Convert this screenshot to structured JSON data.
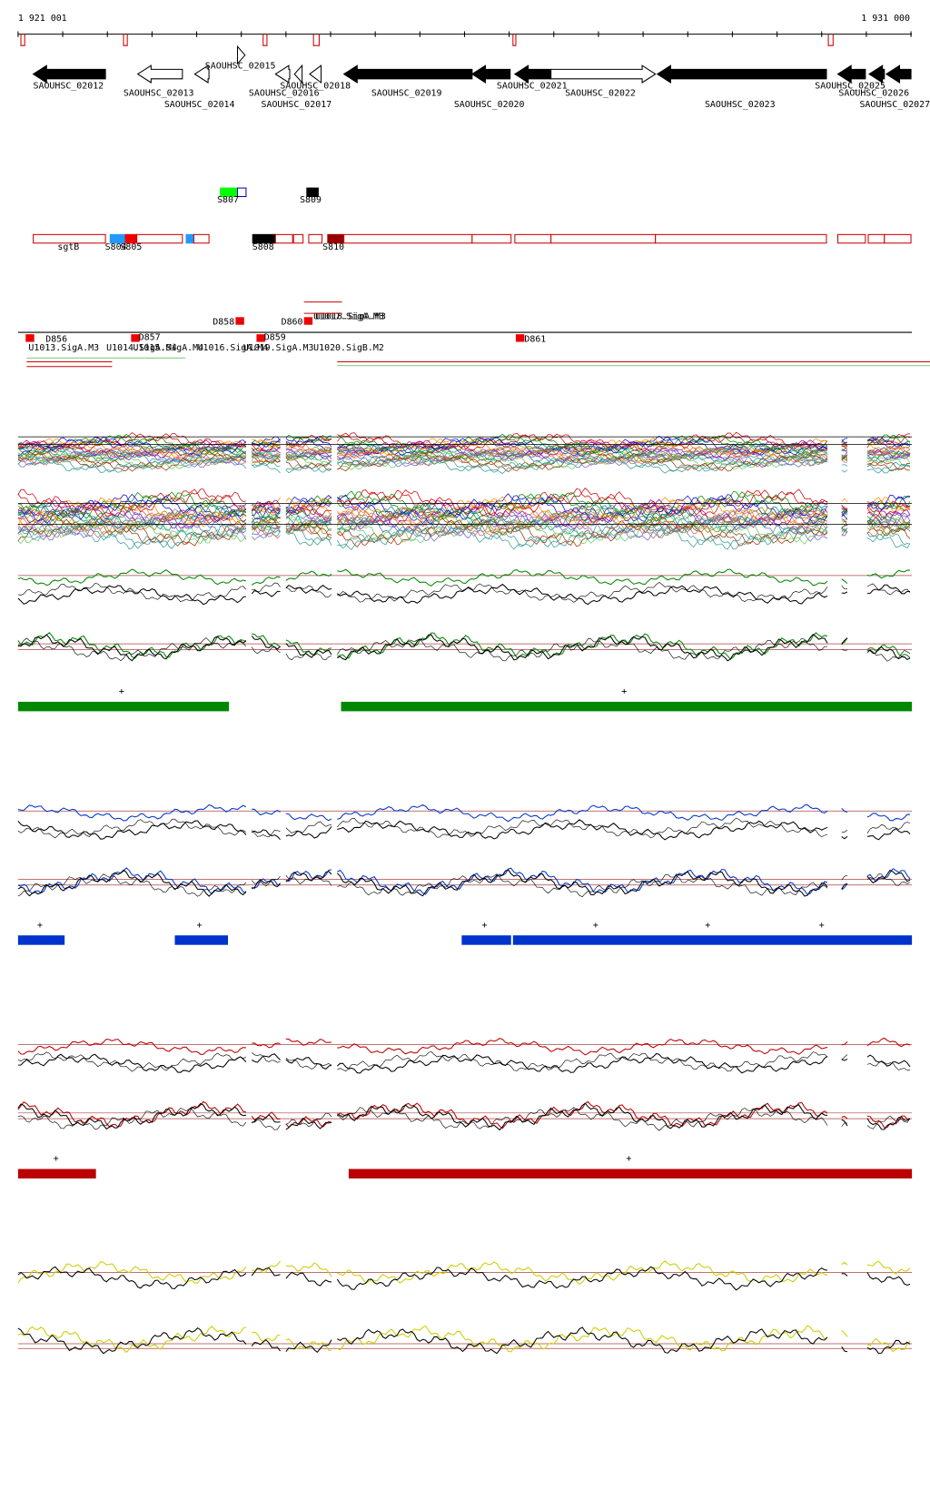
{
  "ruler": {
    "start": "1 921 001",
    "end": "1 931 000"
  },
  "genes": [
    "SAOUHSC_02012",
    "SAOUHSC_02013",
    "SAOUHSC_02014",
    "SAOUHSC_02015",
    "SAOUHSC_02016",
    "SAOUHSC_02017",
    "SAOUHSC_02018",
    "SAOUHSC_02019",
    "SAOUHSC_02020",
    "SAOUHSC_02021",
    "SAOUHSC_02022",
    "SAOUHSC_02023",
    "SAOUHSC_02025",
    "SAOUHSC_02026",
    "SAOUHSC_02027"
  ],
  "features": [
    "S807",
    "S809",
    "sgtB",
    "S804",
    "S805",
    "S808",
    "S810"
  ],
  "promoters": [
    "D856",
    "D857",
    "D858",
    "D859",
    "D860",
    "D861"
  ],
  "upstream": [
    "U1013.SigA.M3",
    "U1014.SigA.M4",
    "U1015.SigA.M4",
    "U1016.SigA.M4",
    "U1019.SigA.M3",
    "U1020.SigB.M2",
    "U1017.SigA.M3",
    "U1018.SigA.M3"
  ],
  "tracks": [
    {
      "plus": [
        "+",
        "+"
      ]
    },
    {
      "plus": [
        "+",
        "+",
        "+",
        "+",
        "+",
        "+"
      ]
    },
    {
      "plus": [
        "+",
        "+"
      ]
    }
  ]
}
